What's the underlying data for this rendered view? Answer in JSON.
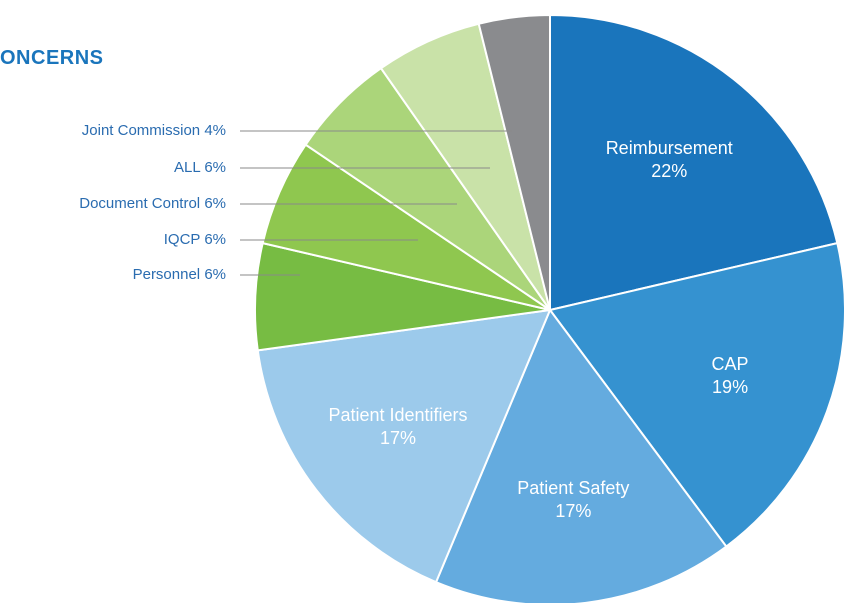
{
  "chart_data": {
    "type": "pie",
    "title": "ONCERNS",
    "categories": [
      "Reimbursement",
      "CAP",
      "Patient Safety",
      "Patient Identifiers",
      "Personnel",
      "IQCP",
      "Document Control",
      "ALL",
      "Joint Commission"
    ],
    "values": [
      22,
      19,
      17,
      17,
      6,
      6,
      6,
      6,
      4
    ],
    "value_labels": [
      "22%",
      "19%",
      "17%",
      "17%",
      "6%",
      "6%",
      "6%",
      "6%",
      "4%"
    ],
    "colors": [
      "#1a75bc",
      "#3592d0",
      "#64abdf",
      "#9ccaeb",
      "#77bc43",
      "#8fc74f",
      "#abd57a",
      "#c9e2a8",
      "#8a8b8e"
    ]
  }
}
